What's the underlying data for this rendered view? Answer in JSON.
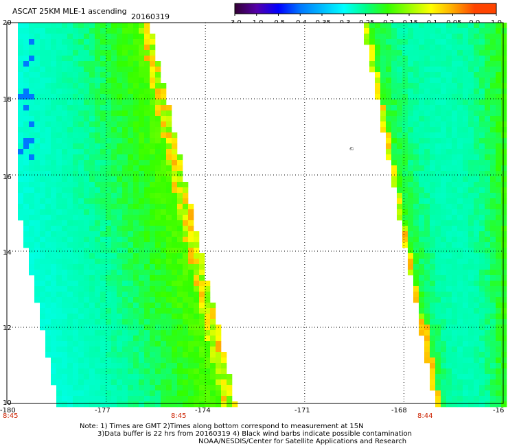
{
  "header": {
    "title": "ASCAT 25KM MLE-1 ascending",
    "date": "20160319"
  },
  "colorbar": {
    "labels": [
      "-3.0",
      "-1.0",
      "-0.5",
      "-0.4",
      "-0.35",
      "-0.3",
      "-0.25",
      "-0.2",
      "-0.15",
      "-0.1",
      "-0.05",
      "0.0",
      "1.0"
    ],
    "colors": [
      "#330033",
      "#5500aa",
      "#0000ff",
      "#0077ff",
      "#00bbff",
      "#00ffff",
      "#00ff88",
      "#33ff00",
      "#99ff00",
      "#ffff00",
      "#ffaa00",
      "#ff4400"
    ]
  },
  "map": {
    "lon_labels": [
      "-180",
      "-177",
      "-174",
      "-171",
      "-168",
      "-16"
    ],
    "lat_labels": [
      "20",
      "18",
      "16",
      "14",
      "12",
      "10"
    ],
    "pass_times": [
      "8:45",
      "8:45",
      "8:44"
    ],
    "grid_lons": [
      -177,
      -174,
      -171,
      -168
    ],
    "grid_lats": [
      18,
      16,
      14,
      12
    ],
    "island_marker": "ಏ"
  },
  "notes": {
    "line1": "Note: 1) Times are GMT 2)Times along bottom correspond to measurement at 15N",
    "line2": "3)Data buffer is 22 hrs from 20160319 4) Black wind barbs indicate possible contamination",
    "line3": "NOAA/NESDIS/Center for Satellite Applications and Research"
  }
}
